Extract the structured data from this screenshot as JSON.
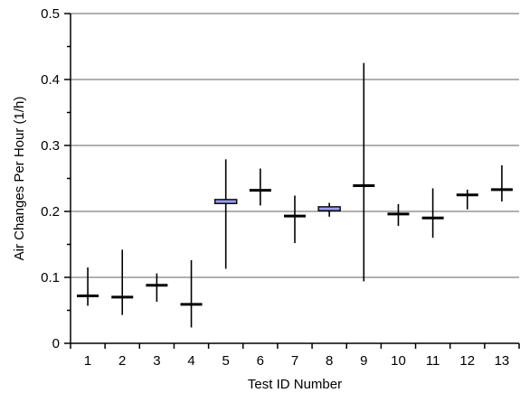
{
  "chart_data": {
    "type": "boxplot",
    "title": "",
    "xlabel": "Test ID Number",
    "ylabel": "Air Changes Per Hour (1/h)",
    "ylim": [
      0,
      0.5
    ],
    "yticks": [
      "0",
      "0.1",
      "0.2",
      "0.3",
      "0.4",
      "0.5"
    ],
    "grid": true,
    "categories": [
      "1",
      "2",
      "3",
      "4",
      "5",
      "6",
      "7",
      "8",
      "9",
      "10",
      "11",
      "12",
      "13"
    ],
    "series": [
      {
        "values": [
          0.072,
          0.07,
          0.088,
          0.059,
          0.215,
          0.232,
          0.193,
          0.204,
          0.239,
          0.196,
          0.19,
          0.225,
          0.233
        ],
        "min": [
          0.057,
          0.043,
          0.063,
          0.024,
          0.113,
          0.209,
          0.152,
          0.192,
          0.094,
          0.178,
          0.16,
          0.203,
          0.215
        ],
        "max": [
          0.115,
          0.142,
          0.106,
          0.126,
          0.279,
          0.265,
          0.224,
          0.213,
          0.425,
          0.211,
          0.235,
          0.233,
          0.27
        ],
        "box_low": [
          null,
          null,
          null,
          null,
          0.212,
          null,
          null,
          0.201,
          null,
          null,
          null,
          null,
          null
        ],
        "box_high": [
          null,
          null,
          null,
          null,
          0.218,
          null,
          null,
          0.207,
          null,
          null,
          null,
          null,
          null
        ]
      }
    ],
    "colors": {
      "box_fill": "#9c9cf0",
      "line": "#000000",
      "grid": "#808080"
    }
  }
}
